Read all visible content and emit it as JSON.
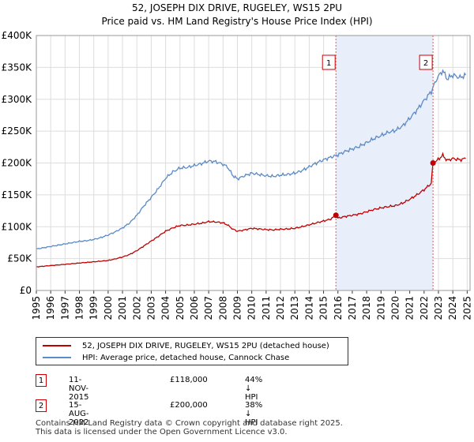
{
  "title": "52, JOSEPH DIX DRIVE, RUGELEY, WS15 2PU",
  "subtitle": "Price paid vs. HM Land Registry's House Price Index (HPI)",
  "colors": {
    "hpi": "#5b8ac6",
    "price": "#c00000",
    "shade": "#e8eefa",
    "marker_border": "#cc0000"
  },
  "chart_data": {
    "type": "line",
    "ylim": [
      0,
      400000
    ],
    "xlim": [
      1995,
      2025.2
    ],
    "y_ticks": [
      {
        "value": 0,
        "label": "£0"
      },
      {
        "value": 50000,
        "label": "£50K"
      },
      {
        "value": 100000,
        "label": "£100K"
      },
      {
        "value": 150000,
        "label": "£150K"
      },
      {
        "value": 200000,
        "label": "£200K"
      },
      {
        "value": 250000,
        "label": "£250K"
      },
      {
        "value": 300000,
        "label": "£300K"
      },
      {
        "value": 350000,
        "label": "£350K"
      },
      {
        "value": 400000,
        "label": "£400K"
      }
    ],
    "x_ticks": [
      "1995",
      "1996",
      "1997",
      "1998",
      "1999",
      "2000",
      "2001",
      "2002",
      "2003",
      "2004",
      "2005",
      "2006",
      "2007",
      "2008",
      "2009",
      "2010",
      "2011",
      "2012",
      "2013",
      "2014",
      "2015",
      "2016",
      "2017",
      "2018",
      "2019",
      "2020",
      "2021",
      "2022",
      "2023",
      "2024",
      "2025"
    ],
    "shaded_period": [
      2015.86,
      2022.62
    ],
    "series": [
      {
        "name": "HPI: Average price, detached house, Cannock Chase",
        "color": "#5b8ac6",
        "x": [
          1995,
          1995.5,
          1996,
          1996.5,
          1997,
          1997.5,
          1998,
          1998.5,
          1999,
          1999.5,
          2000,
          2000.5,
          2001,
          2001.5,
          2002,
          2002.5,
          2003,
          2003.5,
          2004,
          2004.5,
          2005,
          2005.5,
          2006,
          2006.5,
          2007,
          2007.5,
          2008,
          2008.3,
          2008.7,
          2009,
          2009.5,
          2010,
          2010.5,
          2011,
          2011.5,
          2012,
          2012.5,
          2013,
          2013.5,
          2014,
          2014.5,
          2015,
          2015.5,
          2016,
          2016.5,
          2017,
          2017.5,
          2018,
          2018.5,
          2019,
          2019.5,
          2020,
          2020.5,
          2021,
          2021.5,
          2022,
          2022.5,
          2022.9,
          2023.3,
          2023.6,
          2024,
          2024.5,
          2024.9
        ],
        "values": [
          65000,
          67000,
          69000,
          71000,
          73000,
          75000,
          77000,
          78000,
          80000,
          83000,
          87000,
          92000,
          98000,
          106000,
          118000,
          133000,
          146000,
          160000,
          176000,
          186000,
          192000,
          193000,
          196000,
          199000,
          203000,
          202000,
          198000,
          194000,
          180000,
          175000,
          180000,
          184000,
          182000,
          180000,
          179000,
          181000,
          182000,
          184000,
          188000,
          194000,
          200000,
          205000,
          209000,
          213000,
          218000,
          222000,
          226000,
          232000,
          238000,
          243000,
          248000,
          251000,
          258000,
          270000,
          283000,
          298000,
          312000,
          333000,
          345000,
          332000,
          338000,
          334000,
          338000
        ]
      },
      {
        "name": "52, JOSEPH DIX DRIVE, RUGELEY, WS15 2PU (detached house)",
        "color": "#c00000",
        "x": [
          1995,
          1995.5,
          1996,
          1996.5,
          1997,
          1997.5,
          1998,
          1998.5,
          1999,
          1999.5,
          2000,
          2000.5,
          2001,
          2001.5,
          2002,
          2002.5,
          2003,
          2003.5,
          2004,
          2004.5,
          2005,
          2005.5,
          2006,
          2006.5,
          2007,
          2007.5,
          2008,
          2008.3,
          2008.7,
          2009,
          2009.5,
          2010,
          2010.5,
          2011,
          2011.5,
          2012,
          2012.5,
          2013,
          2013.5,
          2014,
          2014.5,
          2015,
          2015.5,
          2015.86,
          2016,
          2016.5,
          2017,
          2017.5,
          2018,
          2018.5,
          2019,
          2019.5,
          2020,
          2020.5,
          2021,
          2021.5,
          2022,
          2022.5,
          2022.62,
          2022.9,
          2023.3,
          2023.6,
          2024,
          2024.5,
          2024.9
        ],
        "values": [
          37000,
          38000,
          39000,
          40000,
          41000,
          42000,
          43000,
          44000,
          45000,
          46000,
          47000,
          49500,
          52500,
          56500,
          62500,
          70000,
          77500,
          85000,
          93000,
          98000,
          102000,
          102500,
          104000,
          105500,
          108000,
          107500,
          106000,
          103000,
          96000,
          93000,
          95000,
          97500,
          96500,
          95500,
          95000,
          96000,
          96500,
          97500,
          100000,
          103000,
          106000,
          109000,
          112000,
          118000,
          113500,
          116000,
          118000,
          120000,
          123500,
          127000,
          129500,
          131500,
          133000,
          137000,
          143000,
          150000,
          158000,
          168000,
          200000,
          204000,
          212000,
          204000,
          207000,
          205000,
          207000
        ]
      }
    ],
    "sales": [
      {
        "label": "1",
        "x": 2015.86,
        "value": 118000
      },
      {
        "label": "2",
        "x": 2022.62,
        "value": 200000
      }
    ]
  },
  "legend": {
    "price_label": "52, JOSEPH DIX DRIVE, RUGELEY, WS15 2PU (detached house)",
    "hpi_label": "HPI: Average price, detached house, Cannock Chase"
  },
  "transactions": [
    {
      "num": "1",
      "date": "11-NOV-2015",
      "price": "£118,000",
      "hpi": "44% ↓ HPI"
    },
    {
      "num": "2",
      "date": "15-AUG-2022",
      "price": "£200,000",
      "hpi": "38% ↓ HPI"
    }
  ],
  "footer": {
    "line1": "Contains HM Land Registry data © Crown copyright and database right 2025.",
    "line2": "This data is licensed under the Open Government Licence v3.0."
  }
}
